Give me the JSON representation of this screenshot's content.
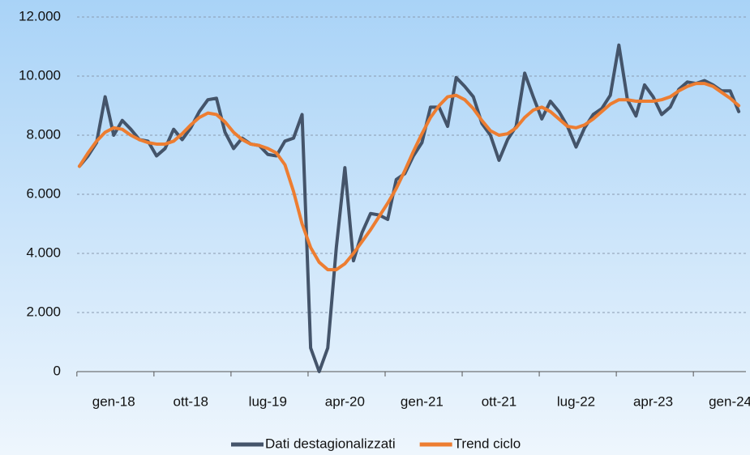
{
  "chart_data": {
    "type": "line",
    "categories": [
      "gen-18",
      null,
      null,
      null,
      null,
      null,
      null,
      null,
      null,
      "ott-18",
      null,
      null,
      null,
      null,
      null,
      null,
      null,
      null,
      "lug-19",
      null,
      null,
      null,
      null,
      null,
      null,
      null,
      null,
      "apr-20",
      null,
      null,
      null,
      null,
      null,
      null,
      null,
      null,
      "gen-21",
      null,
      null,
      null,
      null,
      null,
      null,
      null,
      null,
      "ott-21",
      null,
      null,
      null,
      null,
      null,
      null,
      null,
      null,
      "lug-22",
      null,
      null,
      null,
      null,
      null,
      null,
      null,
      null,
      "apr-23",
      null,
      null,
      null,
      null,
      null,
      null,
      null,
      null,
      "gen-24",
      null,
      null,
      null,
      null,
      null
    ],
    "series": [
      {
        "name": "Dati destagionalizzati",
        "color": "#44546a",
        "values": [
          6950,
          7300,
          7750,
          9300,
          8000,
          8500,
          8200,
          7850,
          7800,
          7300,
          7550,
          8200,
          7850,
          8250,
          8800,
          9200,
          9250,
          8100,
          7550,
          7900,
          7700,
          7650,
          7350,
          7300,
          7800,
          7900,
          8700,
          800,
          0,
          800,
          4200,
          6900,
          3750,
          4700,
          5350,
          5300,
          5150,
          6500,
          6700,
          7300,
          7750,
          8950,
          8950,
          8300,
          9950,
          9650,
          9300,
          8400,
          8000,
          7150,
          7850,
          8300,
          10100,
          9300,
          8550,
          9150,
          8800,
          8300,
          7600,
          8250,
          8700,
          8900,
          9350,
          11050,
          9200,
          8650,
          9700,
          9300,
          8700,
          8950,
          9550,
          9800,
          9750,
          9850,
          9700,
          9500,
          9500,
          8800
        ]
      },
      {
        "name": "Trend ciclo",
        "color": "#ed7d31",
        "values": [
          6950,
          7400,
          7800,
          8100,
          8250,
          8200,
          8000,
          7850,
          7750,
          7700,
          7700,
          7800,
          8050,
          8350,
          8600,
          8750,
          8700,
          8450,
          8100,
          7850,
          7700,
          7650,
          7550,
          7400,
          7000,
          6100,
          5000,
          4200,
          3700,
          3450,
          3450,
          3650,
          4000,
          4400,
          4800,
          5250,
          5700,
          6200,
          6800,
          7450,
          8050,
          8600,
          9000,
          9300,
          9350,
          9200,
          8900,
          8500,
          8150,
          8000,
          8050,
          8250,
          8600,
          8850,
          8950,
          8800,
          8550,
          8300,
          8250,
          8350,
          8550,
          8800,
          9050,
          9200,
          9200,
          9150,
          9150,
          9150,
          9200,
          9300,
          9500,
          9650,
          9750,
          9750,
          9650,
          9450,
          9250,
          9000
        ]
      }
    ],
    "ylim": [
      0,
      12000
    ],
    "yticks": [
      0,
      {
        "value": 2000,
        "label": "2.000"
      },
      {
        "value": 4000,
        "label": "4.000"
      },
      {
        "value": 6000,
        "label": "6.000"
      },
      {
        "value": 8000,
        "label": "8.000"
      },
      {
        "value": 10000,
        "label": "10.000"
      },
      {
        "value": 12000,
        "label": "12.000"
      }
    ],
    "grid": true,
    "legend": "bottom"
  }
}
